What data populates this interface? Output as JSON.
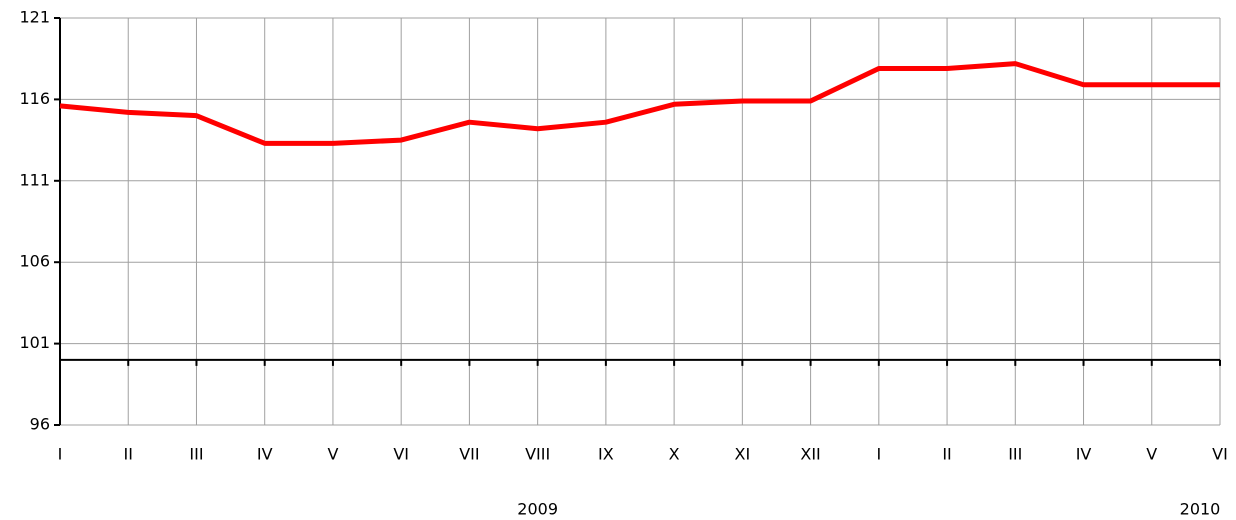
{
  "chart_data": {
    "type": "line",
    "categories": [
      "I",
      "II",
      "III",
      "IV",
      "V",
      "VI",
      "VII",
      "VIII",
      "IX",
      "X",
      "XI",
      "XII",
      "I",
      "II",
      "III",
      "IV",
      "V",
      "VI"
    ],
    "series": [
      {
        "color": "#ff0000",
        "values": [
          115.6,
          115.2,
          115.0,
          113.3,
          113.3,
          113.5,
          114.6,
          114.2,
          114.6,
          115.7,
          115.9,
          115.9,
          117.9,
          117.9,
          118.2,
          116.9,
          116.9,
          116.9
        ]
      }
    ],
    "ylim": [
      96,
      121
    ],
    "yticks": [
      96,
      101,
      106,
      111,
      116,
      121
    ],
    "grid": true,
    "baseline": 100,
    "year_labels": [
      "2009",
      "2010"
    ]
  }
}
